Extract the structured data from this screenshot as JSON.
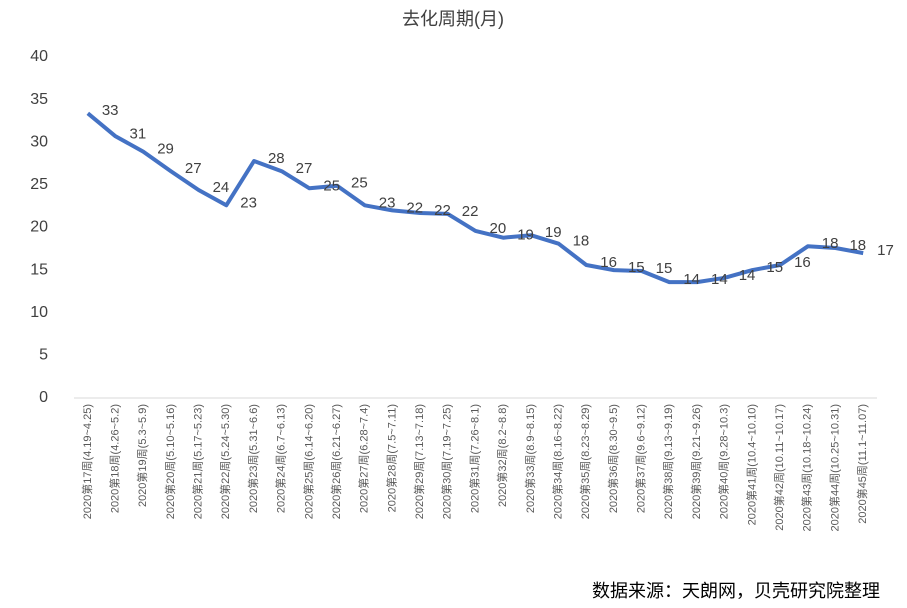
{
  "chart_data": {
    "type": "line",
    "title": "去化周期(月)",
    "categories": [
      "2020第17周(4.19~4.25)",
      "2020第18周(4.26~5.2)",
      "2020第19周(5.3~5.9)",
      "2020第20周(5.10~5.16)",
      "2020第21周(5.17~5.23)",
      "2020第22周(5.24~5.30)",
      "2020第23周(5.31~6.6)",
      "2020第24周(6.7~6.13)",
      "2020第25周(6.14~6.20)",
      "2020第26周(6.21~6.27)",
      "2020第27周(6.28~7.4)",
      "2020第28周(7.5~7.11)",
      "2020第29周(7.13~7.18)",
      "2020第30周(7.19~7.25)",
      "2020第31周(7.26~8.1)",
      "2020第32周(8.2~8.8)",
      "2020第33周(8.9~8.15)",
      "2020第34周(8.16~8.22)",
      "2020第35周(8.23~8.29)",
      "2020第36周(8.30~9.5)",
      "2020第37周(9.6~9.12)",
      "2020第38周(9.13~9.19)",
      "2020第39周(9.21~9.26)",
      "2020第40周(9.28~10.3)",
      "2020第41周(10.4~10.10)",
      "2020第42周(10.11~10.17)",
      "2020第43周(10.18~10.24)",
      "2020第44周(10.25~10.31)",
      "2020第45周(11.1~11.07)"
    ],
    "values": [
      33.4,
      30.7,
      28.9,
      26.6,
      24.4,
      22.6,
      27.8,
      26.6,
      24.6,
      24.9,
      22.6,
      22.0,
      21.7,
      21.6,
      19.6,
      18.8,
      19.1,
      18.1,
      15.6,
      15.0,
      14.9,
      13.6,
      13.6,
      14.1,
      15.0,
      15.6,
      17.8,
      17.6,
      17.0
    ],
    "value_labels": [
      "33",
      "31",
      "29",
      "27",
      "24",
      "23",
      "28",
      "27",
      "25",
      "25",
      "23",
      "22",
      "22",
      "22",
      "20",
      "19",
      "19",
      "18",
      "16",
      "15",
      "15",
      "14",
      "14",
      "14",
      "15",
      "16",
      "18",
      "18",
      "17"
    ],
    "color": "#4472c4",
    "ylim": [
      0,
      40
    ],
    "yticks": [
      0,
      5,
      10,
      15,
      20,
      25,
      30,
      35,
      40
    ],
    "grid": false,
    "source": "数据来源：天朗网，贝壳研究院整理"
  }
}
